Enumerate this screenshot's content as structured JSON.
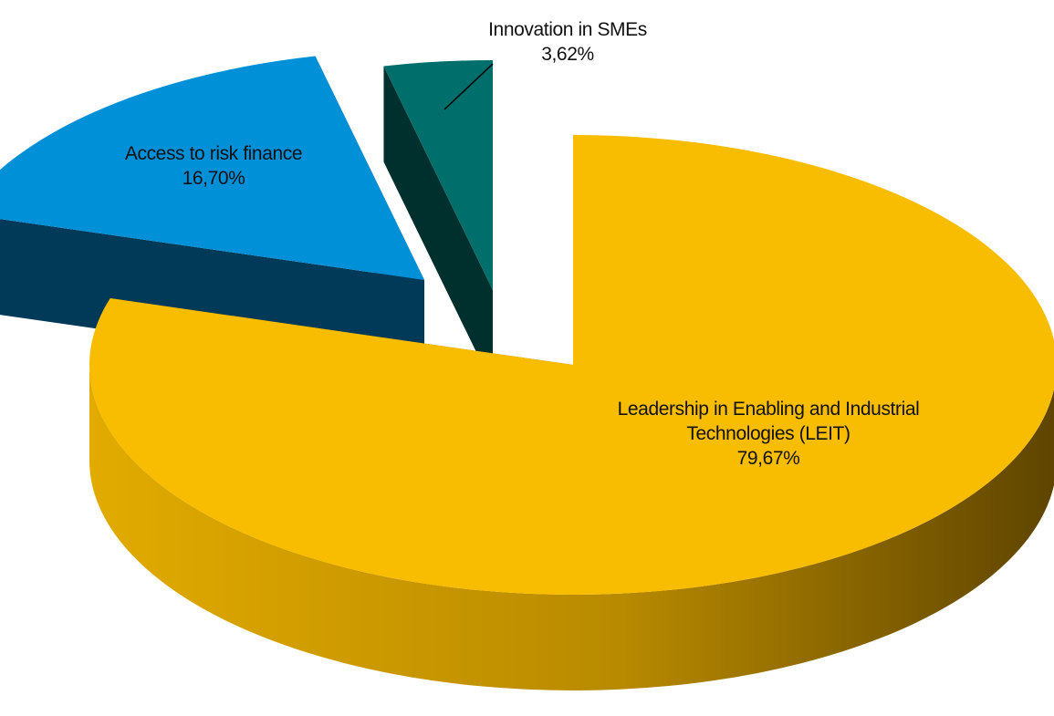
{
  "chart_data": {
    "type": "pie",
    "categories": [
      "Leadership in Enabling and Industrial Technologies (LEIT)",
      "Access to risk finance",
      "Innovation in SMEs"
    ],
    "values": [
      79.67,
      16.7,
      3.62
    ],
    "value_labels": [
      "79,67%",
      "16,70%",
      "3,62%"
    ],
    "colors": [
      "#f9bd00",
      "#0090d8",
      "#006e6a"
    ]
  }
}
